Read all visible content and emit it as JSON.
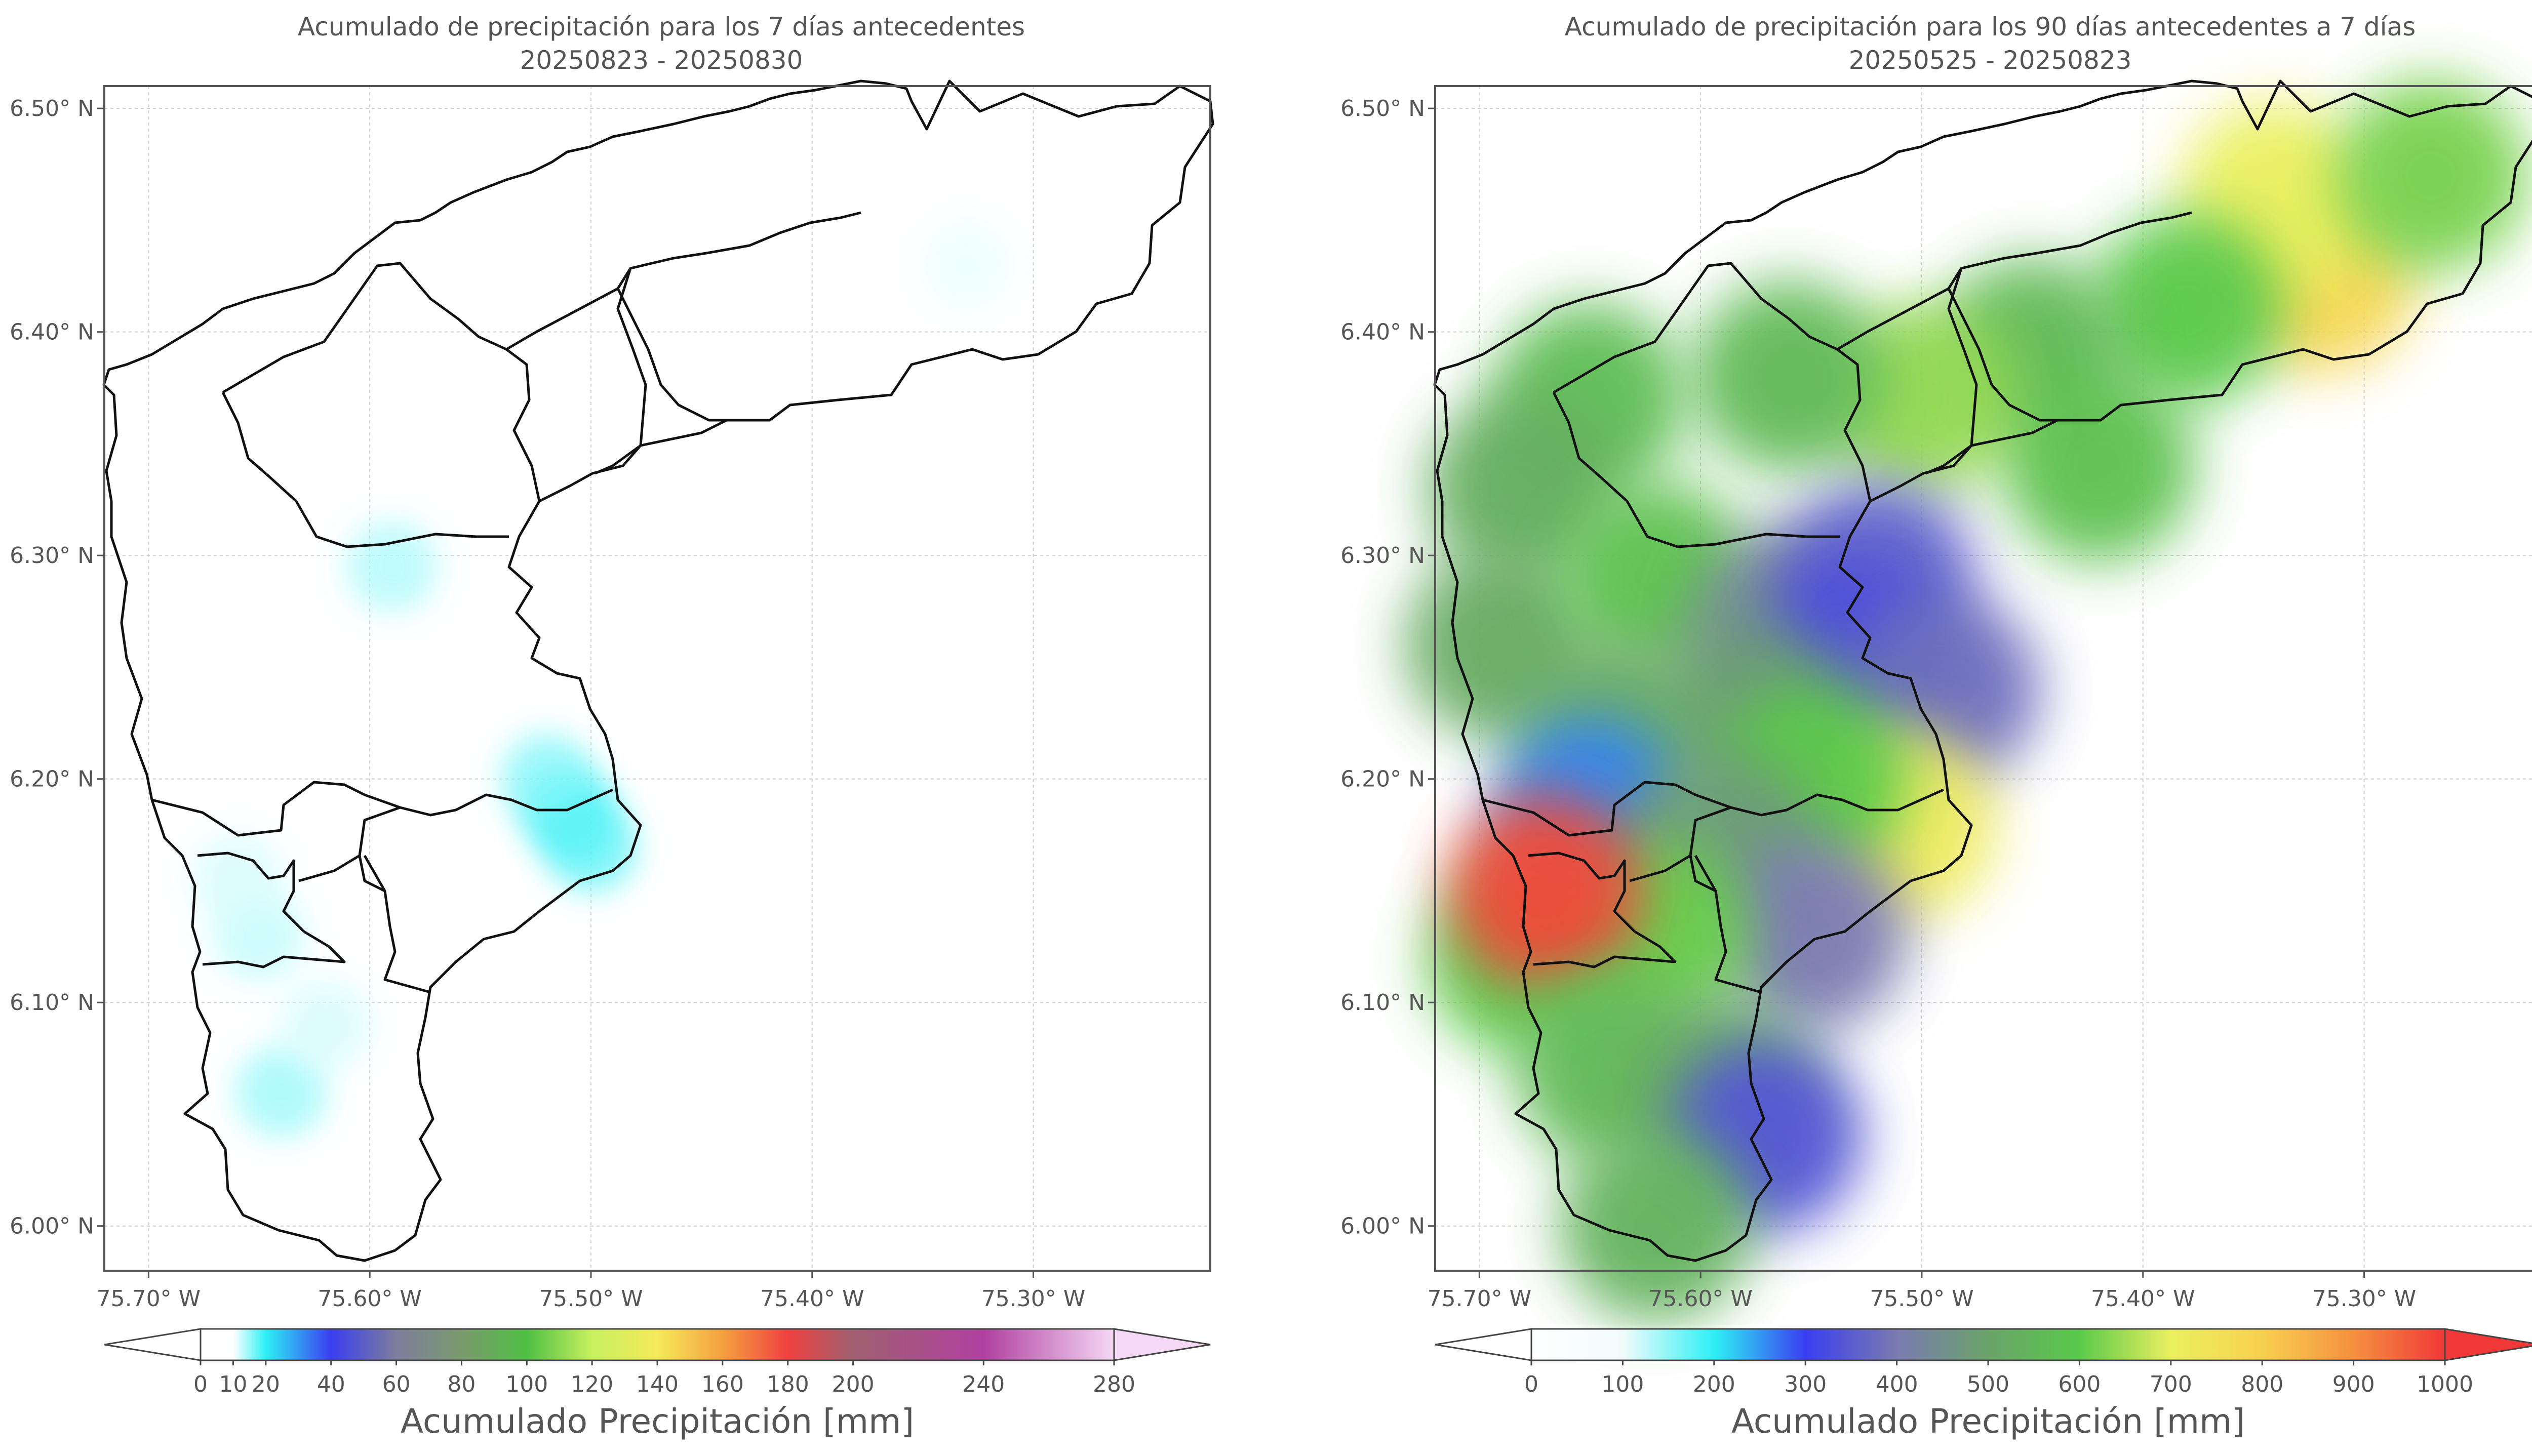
{
  "chart_data": [
    {
      "type": "heatmap",
      "title": "Acumulado de precipitación para los 7 días antecedentes",
      "subtitle": "20250823 - 20250830",
      "x_ticks": [
        "75.70° W",
        "75.60° W",
        "75.50° W",
        "75.40° W",
        "75.30° W"
      ],
      "x_tick_values": [
        -75.7,
        -75.6,
        -75.5,
        -75.4,
        -75.3
      ],
      "y_ticks": [
        "6.50° N",
        "6.40° N",
        "6.30° N",
        "6.20° N",
        "6.10° N",
        "6.00° N"
      ],
      "y_tick_values": [
        6.5,
        6.4,
        6.3,
        6.2,
        6.1,
        6.0
      ],
      "xlim": [
        -75.72,
        -75.22
      ],
      "ylim": [
        5.98,
        6.51
      ],
      "grid": true,
      "colorbar": {
        "label": "Acumulado Precipitación [mm]",
        "tick_labels": [
          "0",
          "10",
          "20",
          "40",
          "60",
          "80",
          "100",
          "120",
          "140",
          "160",
          "180",
          "200",
          "240",
          "280"
        ],
        "tick_values": [
          0,
          10,
          20,
          40,
          60,
          80,
          100,
          120,
          140,
          160,
          180,
          200,
          240,
          280
        ],
        "extend": "both",
        "colors": [
          "#ffffff",
          "#ffffff",
          "#2ef0f5",
          "#3a3ef0",
          "#7d7d9c",
          "#7a9a6e",
          "#4fbf44",
          "#c8f060",
          "#f5ea5a",
          "#f5a040",
          "#f04040",
          "#a06070",
          "#b040a0",
          "#f5d8f5"
        ]
      },
      "cells": [
        {
          "lon": -75.51,
          "lat": 6.185,
          "value": 20
        },
        {
          "lon": -75.52,
          "lat": 6.2,
          "value": 16
        },
        {
          "lon": -75.5,
          "lat": 6.17,
          "value": 18
        },
        {
          "lon": -75.64,
          "lat": 6.06,
          "value": 15
        },
        {
          "lon": -75.62,
          "lat": 6.09,
          "value": 12
        },
        {
          "lon": -75.65,
          "lat": 6.13,
          "value": 13
        },
        {
          "lon": -75.66,
          "lat": 6.155,
          "value": 12
        },
        {
          "lon": -75.33,
          "lat": 6.43,
          "value": 11
        },
        {
          "lon": -75.59,
          "lat": 6.295,
          "value": 14
        }
      ]
    },
    {
      "type": "heatmap",
      "title": "Acumulado de precipitación para los 90 días antecedentes a 7 días",
      "subtitle": "20250525 - 20250823",
      "x_ticks": [
        "75.70° W",
        "75.60° W",
        "75.50° W",
        "75.40° W",
        "75.30° W"
      ],
      "x_tick_values": [
        -75.7,
        -75.6,
        -75.5,
        -75.4,
        -75.3
      ],
      "y_ticks": [
        "6.50° N",
        "6.40° N",
        "6.30° N",
        "6.20° N",
        "6.10° N",
        "6.00° N"
      ],
      "y_tick_values": [
        6.5,
        6.4,
        6.3,
        6.2,
        6.1,
        6.0
      ],
      "xlim": [
        -75.72,
        -75.22
      ],
      "ylim": [
        5.98,
        6.51
      ],
      "grid": true,
      "colorbar": {
        "label": "Acumulado Precipitación [mm]",
        "tick_labels": [
          "0",
          "100",
          "200",
          "300",
          "400",
          "500",
          "600",
          "700",
          "800",
          "900",
          "1000"
        ],
        "tick_values": [
          0,
          100,
          200,
          300,
          400,
          500,
          600,
          700,
          800,
          900,
          1000
        ],
        "extend": "both",
        "colors": [
          "#ffffff",
          "#f2fbfb",
          "#2ef0f5",
          "#3a3ef0",
          "#7a7ab0",
          "#6aa36a",
          "#5ac94a",
          "#eaf060",
          "#f8d050",
          "#f59040",
          "#f03838"
        ]
      },
      "cells": [
        {
          "lon": -75.32,
          "lat": 6.425,
          "value": 780
        },
        {
          "lon": -75.34,
          "lat": 6.46,
          "value": 700
        },
        {
          "lon": -75.27,
          "lat": 6.47,
          "value": 620
        },
        {
          "lon": -75.38,
          "lat": 6.41,
          "value": 600
        },
        {
          "lon": -75.45,
          "lat": 6.39,
          "value": 560
        },
        {
          "lon": -75.42,
          "lat": 6.34,
          "value": 580
        },
        {
          "lon": -75.5,
          "lat": 6.37,
          "value": 640
        },
        {
          "lon": -75.56,
          "lat": 6.38,
          "value": 560
        },
        {
          "lon": -75.65,
          "lat": 6.37,
          "value": 570
        },
        {
          "lon": -75.68,
          "lat": 6.33,
          "value": 530
        },
        {
          "lon": -75.69,
          "lat": 6.26,
          "value": 520
        },
        {
          "lon": -75.62,
          "lat": 6.29,
          "value": 580
        },
        {
          "lon": -75.56,
          "lat": 6.27,
          "value": 440
        },
        {
          "lon": -75.52,
          "lat": 6.29,
          "value": 360
        },
        {
          "lon": -75.53,
          "lat": 6.255,
          "value": 330
        },
        {
          "lon": -75.49,
          "lat": 6.24,
          "value": 380
        },
        {
          "lon": -75.58,
          "lat": 6.23,
          "value": 480
        },
        {
          "lon": -75.64,
          "lat": 6.22,
          "value": 520
        },
        {
          "lon": -75.65,
          "lat": 6.185,
          "value": 260
        },
        {
          "lon": -75.51,
          "lat": 6.18,
          "value": 720
        },
        {
          "lon": -75.55,
          "lat": 6.2,
          "value": 600
        },
        {
          "lon": -75.59,
          "lat": 6.17,
          "value": 480
        },
        {
          "lon": -75.55,
          "lat": 6.13,
          "value": 400
        },
        {
          "lon": -75.62,
          "lat": 6.13,
          "value": 610
        },
        {
          "lon": -75.68,
          "lat": 6.12,
          "value": 600
        },
        {
          "lon": -75.67,
          "lat": 6.15,
          "value": 980
        },
        {
          "lon": -75.64,
          "lat": 6.07,
          "value": 560
        },
        {
          "lon": -75.59,
          "lat": 6.06,
          "value": 520
        },
        {
          "lon": -75.57,
          "lat": 6.04,
          "value": 340
        },
        {
          "lon": -75.62,
          "lat": 6.0,
          "value": 540
        }
      ]
    }
  ]
}
